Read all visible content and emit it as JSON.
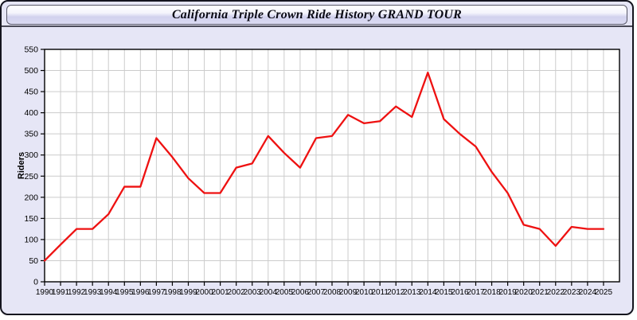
{
  "page": {
    "title": "California Triple Crown Ride History GRAND TOUR"
  },
  "colors": {
    "page_background": "#e6e6f6",
    "plot_background": "#ffffff",
    "gridline": "#cccccc",
    "axis": "#000000",
    "series_line": "#ee1111",
    "titlebar_border": "#5a5a6a"
  },
  "chart_data": {
    "type": "line",
    "title": "California Triple Crown Ride History GRAND TOUR",
    "xlabel": "",
    "ylabel": "Riders",
    "ylim": [
      0,
      550
    ],
    "ytick_step": 50,
    "yticks": [
      0,
      50,
      100,
      150,
      200,
      250,
      300,
      350,
      400,
      450,
      500,
      550
    ],
    "grid": true,
    "legend": "none",
    "categories": [
      "1990",
      "1991",
      "1992",
      "1993",
      "1994",
      "1995",
      "1996",
      "1997",
      "1998",
      "1999",
      "2000",
      "2001",
      "2002",
      "2003",
      "2004",
      "2005",
      "2006",
      "2007",
      "2008",
      "2009",
      "2010",
      "2011",
      "2012",
      "2013",
      "2014",
      "2015",
      "2016",
      "2017",
      "2018",
      "2019",
      "2020",
      "2021",
      "2022",
      "2023",
      "2024",
      "2025"
    ],
    "series": [
      {
        "name": "Riders",
        "color": "#ee1111",
        "values": [
          50,
          88,
          125,
          125,
          160,
          225,
          225,
          340,
          295,
          245,
          210,
          210,
          270,
          280,
          345,
          305,
          270,
          340,
          345,
          395,
          375,
          380,
          415,
          390,
          495,
          385,
          350,
          320,
          260,
          210,
          135,
          125,
          85,
          130,
          125,
          125
        ]
      }
    ]
  }
}
